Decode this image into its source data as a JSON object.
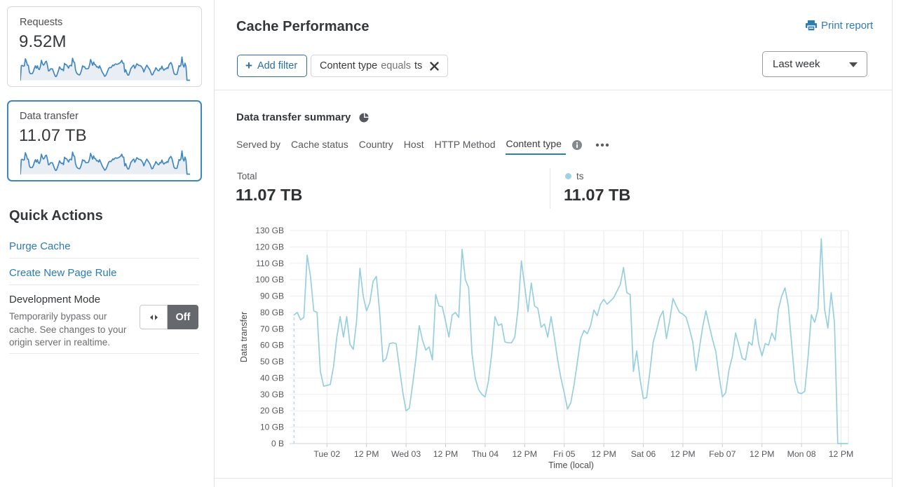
{
  "colors": {
    "accent_blue": "#2e7cb4",
    "link_blue": "#2c7bb2",
    "button_blue": "#2c6f9f",
    "selected_card_border": "#3e86bd",
    "sparkline_stroke": "#4187c0",
    "sparkline_fill": "#e9eef5",
    "chart_line": "#97cfdf",
    "legend_dot": "#9fd4e2",
    "toggle_off_bg": "#65696e",
    "text_dark": "#35383b",
    "text_gray": "#56585c"
  },
  "sidebar": {
    "metrics": [
      {
        "label": "Requests",
        "value": "9.52M",
        "selected": false
      },
      {
        "label": "Data transfer",
        "value": "11.07 TB",
        "selected": true
      }
    ],
    "quick_actions_title": "Quick Actions",
    "links": [
      {
        "label": "Purge Cache"
      },
      {
        "label": "Create New Page Rule"
      }
    ],
    "dev_mode": {
      "title": "Development Mode",
      "description": "Temporarily bypass our cache. See changes to your origin server in realtime.",
      "toggle_state": "Off"
    }
  },
  "header": {
    "title": "Cache Performance",
    "print_label": "Print report"
  },
  "filters": {
    "add_label": "Add filter",
    "add_plus": "+",
    "chip": {
      "field": "Content type",
      "operator": "equals",
      "value": "ts"
    },
    "range_selected": "Last week"
  },
  "summary": {
    "title": "Data transfer summary",
    "tabs": [
      {
        "label": "Served by",
        "active": false
      },
      {
        "label": "Cache status",
        "active": false
      },
      {
        "label": "Country",
        "active": false
      },
      {
        "label": "Host",
        "active": false
      },
      {
        "label": "HTTP Method",
        "active": false
      },
      {
        "label": "Content type",
        "active": true
      }
    ],
    "total_label": "Total",
    "total_value": "11.07 TB",
    "legend": {
      "series": "ts",
      "value": "11.07 TB"
    }
  },
  "chart_data": {
    "type": "line",
    "title": "Data transfer summary",
    "xlabel": "Time (local)",
    "ylabel": "Data transfer",
    "unit": "GB",
    "ylim": [
      0,
      130
    ],
    "ytick_step": 10,
    "ytick_labels": [
      "0 B",
      "10 GB",
      "20 GB",
      "30 GB",
      "40 GB",
      "50 GB",
      "60 GB",
      "70 GB",
      "80 GB",
      "90 GB",
      "100 GB",
      "110 GB",
      "120 GB",
      "130 GB"
    ],
    "xtick_labels": [
      "Tue 02",
      "12 PM",
      "Wed 03",
      "12 PM",
      "Thu 04",
      "12 PM",
      "Fri 05",
      "12 PM",
      "Sat 06",
      "12 PM",
      "Feb 07",
      "12 PM",
      "Mon 08",
      "12 PM"
    ],
    "x_start": "Mon 01 14:00",
    "hours_per_point": 1,
    "first_tick_point_index": 10,
    "points_per_tick": 12,
    "grid": true,
    "legend_position": "above",
    "dashed_start": true,
    "series": [
      {
        "name": "ts",
        "total": "11.07 TB",
        "values": [
          78.5,
          80,
          75.5,
          77,
          115,
          102,
          81,
          80,
          44,
          35,
          35.5,
          36,
          47,
          65,
          77.5,
          65,
          77.5,
          60.5,
          57.5,
          75,
          107,
          90,
          81,
          86,
          99,
          102,
          80,
          50,
          52,
          61,
          61.5,
          61,
          46,
          31.5,
          20,
          21.5,
          36,
          52,
          72,
          63,
          57,
          59,
          51,
          91,
          84,
          83.5,
          74.5,
          65,
          78.5,
          80,
          77,
          118.5,
          100,
          95,
          55,
          40,
          33,
          30,
          28.5,
          38,
          55,
          77.5,
          72,
          73,
          62,
          61.5,
          61.5,
          65,
          82.5,
          111.5,
          96,
          80.5,
          98,
          84,
          82.5,
          71,
          73,
          65,
          77.5,
          65,
          51,
          40,
          31,
          21,
          25,
          36,
          50,
          64,
          69,
          67,
          72,
          81.5,
          78,
          85,
          88,
          85,
          87,
          89,
          93,
          97,
          107.5,
          92,
          91,
          44,
          56.5,
          39.5,
          27.5,
          28,
          44,
          62,
          69,
          77,
          81,
          64,
          75,
          88.5,
          84,
          80,
          79,
          77,
          70,
          62,
          44.5,
          58,
          71,
          81,
          72,
          63.5,
          56,
          41,
          28.5,
          31,
          45,
          53,
          67.5,
          60,
          52,
          51,
          62,
          60,
          76,
          61,
          53.5,
          61,
          60,
          67.5,
          63,
          82,
          90,
          95,
          84,
          61,
          38,
          31,
          30.5,
          32,
          53,
          78.5,
          74,
          82,
          125,
          82,
          70.5,
          92,
          74,
          0,
          0,
          0,
          0
        ]
      }
    ]
  }
}
